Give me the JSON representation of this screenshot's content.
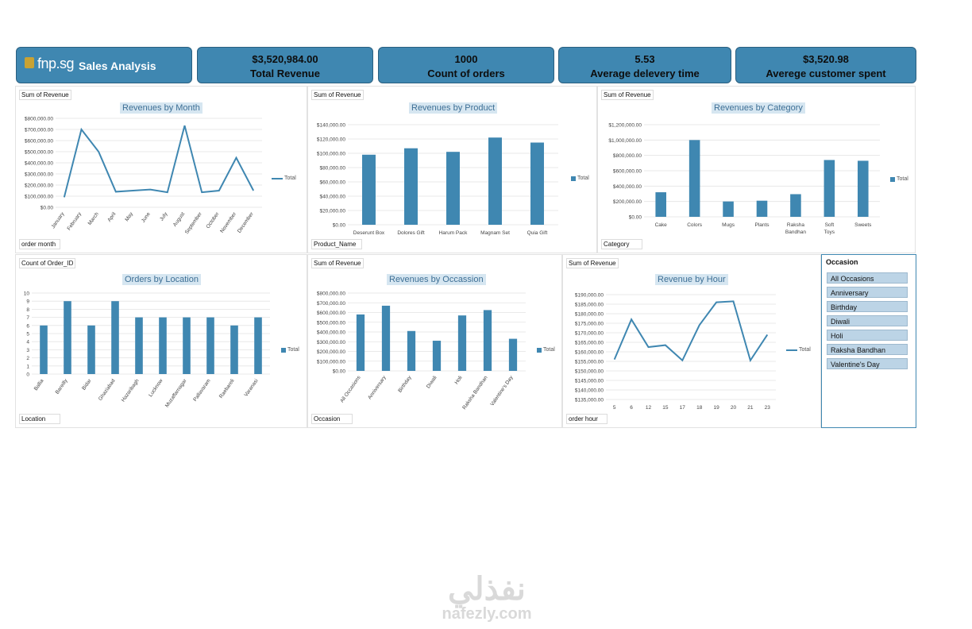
{
  "header": {
    "logo_text": "fnp.sg",
    "title": "Sales Analysis"
  },
  "kpis": [
    {
      "value": "$3,520,984.00",
      "label": "Total Revenue"
    },
    {
      "value": "1000",
      "label": "Count of orders"
    },
    {
      "value": "5.53",
      "label": "Average delevery time"
    },
    {
      "value": "$3,520.98",
      "label": "Averege customer spent"
    }
  ],
  "legend_label": "Total",
  "colors": {
    "accent": "#3f87b1",
    "kpi_bg": "#3f87b1"
  },
  "slicer": {
    "title": "Occasion",
    "items": [
      "All Occasions",
      "Anniversary",
      "Birthday",
      "Diwali",
      "Holi",
      "Raksha Bandhan",
      "Valentine's Day"
    ]
  },
  "watermark": {
    "arabic": "نفذلي",
    "latin": "nafezly.com"
  },
  "chart_data": [
    {
      "id": "month",
      "type": "line",
      "title": "Revenues by Month",
      "value_field": "Sum of Revenue",
      "axis_field": "order month",
      "categories": [
        "January",
        "February",
        "March",
        "April",
        "May",
        "June",
        "July",
        "August",
        "September",
        "October",
        "November",
        "December"
      ],
      "series": [
        {
          "name": "Total",
          "values": [
            90000,
            700000,
            500000,
            140000,
            150000,
            160000,
            135000,
            735000,
            135000,
            150000,
            445000,
            150000
          ]
        }
      ],
      "ylim": [
        0,
        800000
      ],
      "yticks": [
        "$0.00",
        "$100,000.00",
        "$200,000.00",
        "$300,000.00",
        "$400,000.00",
        "$500,000.00",
        "$600,000.00",
        "$700,000.00",
        "$800,000.00"
      ]
    },
    {
      "id": "product",
      "type": "bar",
      "title": "Revenues by Product",
      "value_field": "Sum of Revenue",
      "axis_field": "Product_Name",
      "categories": [
        "Deserunt Box",
        "Dolores Gift",
        "Harum Pack",
        "Magnam Set",
        "Quia Gift"
      ],
      "series": [
        {
          "name": "Total",
          "values": [
            98000,
            107000,
            102000,
            122000,
            115000
          ]
        }
      ],
      "ylim": [
        0,
        140000
      ],
      "yticks": [
        "$0.00",
        "$20,000.00",
        "$40,000.00",
        "$60,000.00",
        "$80,000.00",
        "$100,000.00",
        "$120,000.00",
        "$140,000.00"
      ]
    },
    {
      "id": "category",
      "type": "bar",
      "title": "Revenues by Category",
      "value_field": "Sum of Revenue",
      "axis_field": "Category",
      "categories": [
        "Cake",
        "Colors",
        "Mugs",
        "Plants",
        "Raksha Bandhan",
        "Soft Toys",
        "Sweets"
      ],
      "series": [
        {
          "name": "Total",
          "values": [
            320000,
            1000000,
            200000,
            210000,
            295000,
            740000,
            730000
          ]
        }
      ],
      "ylim": [
        0,
        1200000
      ],
      "yticks": [
        "$0.00",
        "$200,000.00",
        "$400,000.00",
        "$600,000.00",
        "$800,000.00",
        "$1,000,000.00",
        "$1,200,000.00"
      ]
    },
    {
      "id": "location",
      "type": "bar",
      "title": "Orders by Location",
      "value_field": "Count of Order_ID",
      "axis_field": "Location",
      "categories": [
        "Ballia",
        "Bareilly",
        "Bidar",
        "Ghaziabad",
        "Hazaribagh",
        "Lucknow",
        "Muzaffarnagar",
        "Pallavaram",
        "Raebareli",
        "Varanasi"
      ],
      "series": [
        {
          "name": "Total",
          "values": [
            6,
            9,
            6,
            9,
            7,
            7,
            7,
            7,
            6,
            7
          ]
        }
      ],
      "ylim": [
        0,
        10
      ],
      "yticks": [
        "0",
        "1",
        "2",
        "3",
        "4",
        "5",
        "6",
        "7",
        "8",
        "9",
        "10"
      ]
    },
    {
      "id": "occasion",
      "type": "bar",
      "title": "Revenues by Occassion",
      "value_field": "Sum of Revenue",
      "axis_field": "Occasion",
      "categories": [
        "All Occasions",
        "Anniversary",
        "Birthday",
        "Diwali",
        "Holi",
        "Raksha Bandhan",
        "Valentine's Day"
      ],
      "series": [
        {
          "name": "Total",
          "values": [
            580000,
            670000,
            410000,
            310000,
            570000,
            625000,
            330000
          ]
        }
      ],
      "ylim": [
        0,
        800000
      ],
      "yticks": [
        "$0.00",
        "$100,000.00",
        "$200,000.00",
        "$300,000.00",
        "$400,000.00",
        "$500,000.00",
        "$600,000.00",
        "$700,000.00",
        "$800,000.00"
      ]
    },
    {
      "id": "hour",
      "type": "line",
      "title": "Revenue by Hour",
      "value_field": "Sum of Revenue",
      "axis_field": "order hour",
      "categories": [
        "5",
        "6",
        "12",
        "15",
        "17",
        "18",
        "19",
        "20",
        "21",
        "23"
      ],
      "series": [
        {
          "name": "Total",
          "values": [
            156000,
            177000,
            162500,
            163500,
            155500,
            174000,
            186000,
            186500,
            155500,
            169000
          ]
        }
      ],
      "ylim": [
        135000,
        190000
      ],
      "yticks": [
        "$135,000.00",
        "$140,000.00",
        "$145,000.00",
        "$150,000.00",
        "$155,000.00",
        "$160,000.00",
        "$165,000.00",
        "$170,000.00",
        "$175,000.00",
        "$180,000.00",
        "$185,000.00",
        "$190,000.00"
      ]
    }
  ]
}
